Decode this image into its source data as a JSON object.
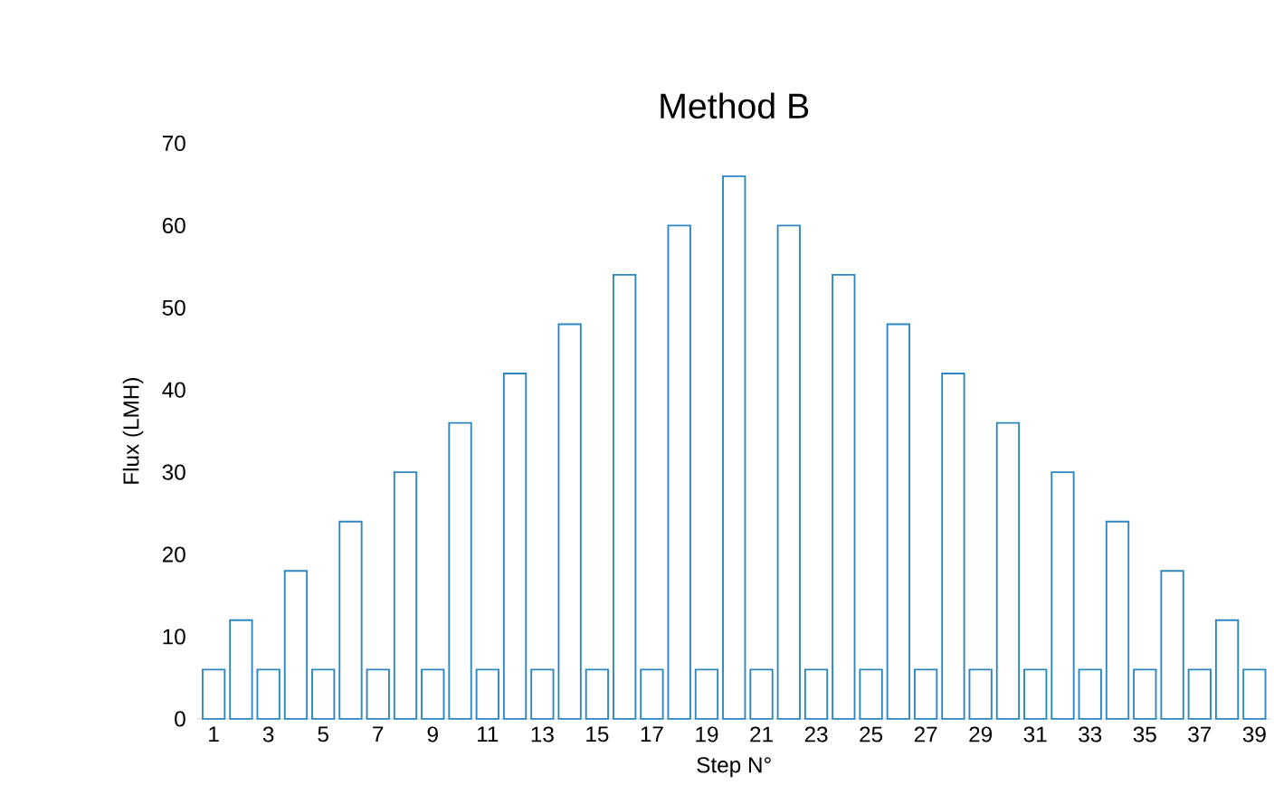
{
  "chart_data": {
    "type": "bar",
    "title": "Method B",
    "xlabel": "Step N°",
    "ylabel": "Flux (LMH)",
    "categories": [
      "1",
      null,
      "3",
      null,
      "5",
      null,
      "7",
      null,
      "9",
      null,
      "11",
      null,
      "13",
      null,
      "15",
      null,
      "17",
      null,
      "19",
      null,
      "21",
      null,
      "23",
      null,
      "25",
      null,
      "27",
      null,
      "29",
      null,
      "31",
      null,
      "33",
      null,
      "35",
      null,
      "37",
      null,
      "39"
    ],
    "values": [
      6,
      12,
      6,
      18,
      6,
      24,
      6,
      30,
      6,
      36,
      6,
      42,
      6,
      48,
      6,
      54,
      6,
      60,
      6,
      66,
      6,
      60,
      6,
      54,
      6,
      48,
      6,
      42,
      6,
      36,
      6,
      30,
      6,
      24,
      6,
      18,
      6,
      12,
      6
    ],
    "color": "#2e86c1",
    "ylim": [
      0,
      70
    ],
    "yticks": [
      0,
      10,
      20,
      30,
      40,
      50,
      60,
      70
    ]
  }
}
